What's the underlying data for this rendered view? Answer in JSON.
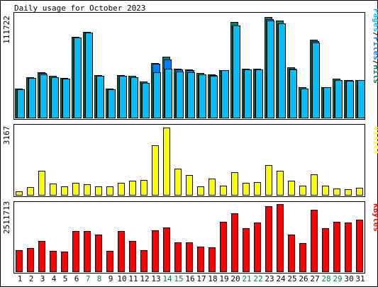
{
  "colors": {
    "background": "#ffffff",
    "panel": "#c0c0c0",
    "hits": "#00805c",
    "files": "#0080ff",
    "pages": "#00c0ff",
    "visits": "#ffff00",
    "kbytes": "#ff0000",
    "weekday_label": "#000000",
    "weekend_label": "#00805c"
  },
  "chart_data": [
    {
      "type": "bar",
      "title": "Daily usage for October 2023",
      "ylabel": "Pages/Files/Hits",
      "ylabel_parts": [
        {
          "text": "Pages",
          "color_key": "pages"
        },
        {
          "text": "/",
          "color_key": "weekday_label"
        },
        {
          "text": "Files",
          "color_key": "files"
        },
        {
          "text": "/",
          "color_key": "weekday_label"
        },
        {
          "text": "Hits",
          "color_key": "hits"
        }
      ],
      "max_label": "111722",
      "ylim": [
        0,
        111722
      ],
      "categories": [
        "1",
        "2",
        "3",
        "4",
        "5",
        "6",
        "7",
        "8",
        "9",
        "10",
        "11",
        "12",
        "13",
        "14",
        "15",
        "16",
        "17",
        "18",
        "19",
        "20",
        "21",
        "22",
        "23",
        "24",
        "25",
        "26",
        "27",
        "28",
        "29",
        "30",
        "31"
      ],
      "weekend": [
        false,
        false,
        false,
        false,
        false,
        false,
        true,
        true,
        false,
        false,
        false,
        false,
        false,
        true,
        true,
        false,
        false,
        false,
        false,
        false,
        true,
        true,
        false,
        false,
        false,
        false,
        false,
        true,
        true,
        false,
        false
      ],
      "series": [
        {
          "name": "Hits",
          "color_key": "hits",
          "values": [
            32000,
            44000,
            49000,
            45000,
            43000,
            87000,
            92000,
            46000,
            32000,
            46000,
            45000,
            39000,
            59000,
            66000,
            53000,
            52000,
            48000,
            47000,
            51000,
            103000,
            53000,
            53000,
            108000,
            104000,
            54000,
            33000,
            84000,
            33000,
            42000,
            41000,
            41000
          ]
        },
        {
          "name": "Files",
          "color_key": "files",
          "values": [
            31000,
            43000,
            48000,
            44000,
            42000,
            86000,
            91000,
            45000,
            31000,
            45000,
            44000,
            38000,
            58000,
            63000,
            52000,
            51000,
            47000,
            46000,
            51000,
            99000,
            52000,
            52000,
            106000,
            101000,
            53000,
            32000,
            82000,
            33000,
            41000,
            41000,
            41000
          ]
        },
        {
          "name": "Pages",
          "color_key": "pages",
          "values": [
            31000,
            43000,
            47000,
            44000,
            42000,
            86000,
            91000,
            45000,
            31000,
            45000,
            44000,
            38000,
            49000,
            53000,
            50000,
            49000,
            47000,
            45000,
            51000,
            99000,
            52000,
            52000,
            104000,
            101000,
            52000,
            32000,
            81000,
            33000,
            41000,
            40000,
            41000
          ]
        }
      ]
    },
    {
      "type": "bar",
      "ylabel": "Visits",
      "ylabel_parts": [
        {
          "text": "Visits",
          "color_key": "visits"
        }
      ],
      "max_label": "3167",
      "ylim": [
        0,
        3167
      ],
      "series": [
        {
          "name": "Visits",
          "color_key": "visits",
          "values": [
            200,
            400,
            1150,
            550,
            420,
            610,
            540,
            420,
            420,
            610,
            700,
            720,
            2350,
            3167,
            1250,
            960,
            420,
            800,
            460,
            1080,
            610,
            630,
            1430,
            1140,
            700,
            450,
            990,
            450,
            330,
            300,
            350
          ]
        }
      ]
    },
    {
      "type": "bar",
      "ylabel": "KBytes",
      "ylabel_parts": [
        {
          "text": "KBytes",
          "color_key": "kbytes"
        }
      ],
      "max_label": "2511713",
      "ylim": [
        0,
        2511713
      ],
      "series": [
        {
          "name": "KBytes",
          "color_key": "kbytes",
          "values": [
            820000,
            890000,
            1140000,
            790000,
            770000,
            1520000,
            1530000,
            1380000,
            790000,
            1530000,
            1140000,
            810000,
            1550000,
            1640000,
            1110000,
            1110000,
            950000,
            910000,
            1860000,
            2180000,
            1610000,
            1840000,
            2430000,
            2511713,
            1380000,
            1070000,
            2300000,
            1620000,
            1850000,
            1840000,
            1930000
          ]
        }
      ]
    }
  ]
}
